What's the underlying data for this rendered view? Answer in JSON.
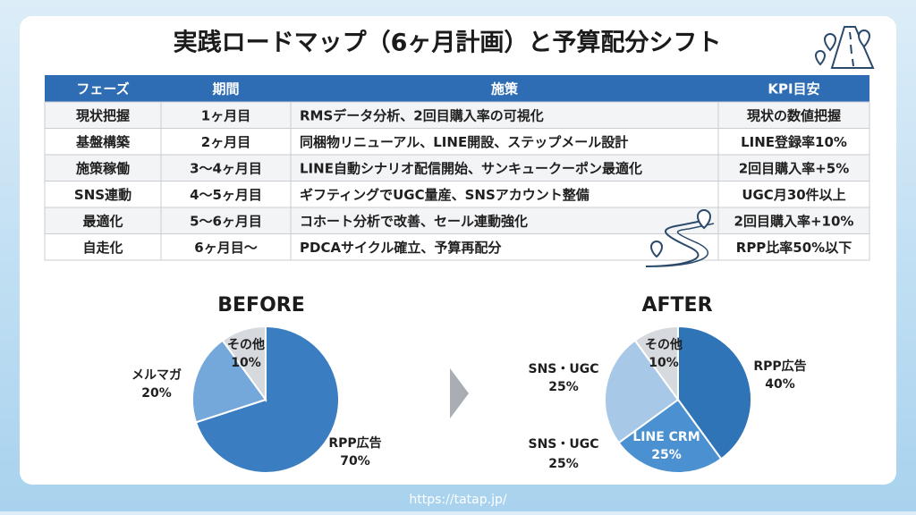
{
  "header": {
    "title": "実践ロードマップ（6ヶ月計画）と予算配分シフト"
  },
  "table": {
    "columns": [
      "フェーズ",
      "期間",
      "施策",
      "KPI目安"
    ],
    "rows": [
      [
        "現状把握",
        "1ヶ月目",
        "RMSデータ分析、2回目購入率の可視化",
        "現状の数値把握"
      ],
      [
        "基盤構築",
        "2ヶ月目",
        "同梱物リニューアル、LINE開設、ステップメール設計",
        "LINE登録率10%"
      ],
      [
        "施策稼働",
        "3〜4ヶ月目",
        "LINE自動シナリオ配信開始、サンキュークーポン最適化",
        "2回目購入率+5%"
      ],
      [
        "SNS連動",
        "4〜5ヶ月目",
        "ギフティングでUGC量産、SNSアカウント整備",
        "UGC月30件以上"
      ],
      [
        "最適化",
        "5〜6ヶ月目",
        "コホート分析で改善、セール連動強化",
        "2回目購入率+10%"
      ],
      [
        "自走化",
        "6ヶ月目〜",
        "PDCAサイクル確立、予算再配分",
        "RPP比率50%以下"
      ]
    ]
  },
  "chart_data": [
    {
      "type": "pie",
      "title": "BEFORE",
      "categories": [
        "RPP広告",
        "メルマガ",
        "その他"
      ],
      "values": [
        70,
        20,
        10
      ],
      "value_labels": [
        "70%",
        "20%",
        "10%"
      ],
      "colors": [
        "#3a7dc0",
        "#74a8da",
        "#d6d9dd"
      ]
    },
    {
      "type": "pie",
      "title": "AFTER",
      "categories": [
        "RPP広告",
        "LINE CRM",
        "SNS・UGC",
        "その他"
      ],
      "values": [
        40,
        25,
        25,
        10
      ],
      "value_labels": [
        "40%",
        "25%",
        "25%",
        "10%"
      ],
      "colors": [
        "#2f74b6",
        "#4b90d0",
        "#a8c8e8",
        "#d6d9dd"
      ],
      "annotations": [
        "SNS・UGC",
        "25%"
      ]
    }
  ],
  "footer": {
    "url": "https://tatap.jp/"
  }
}
